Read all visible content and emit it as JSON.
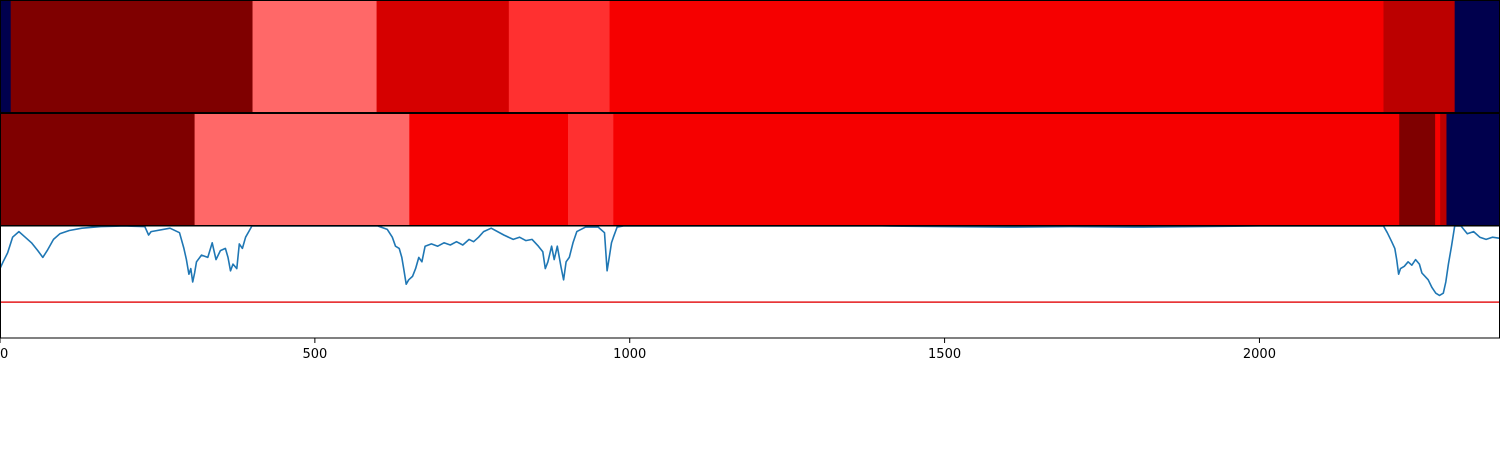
{
  "chart_data": {
    "type": "heatmap",
    "x_range": [
      0,
      2382
    ],
    "x_ticks": [
      0,
      500,
      1000,
      1500,
      2000
    ],
    "x_tick_labels": [
      "0",
      "500",
      "1000",
      "1500",
      "2000"
    ],
    "colors": {
      "navy": "#00004d",
      "maroon": "#7f0000",
      "light_red": "#ff6868",
      "dark_red": "#d60000",
      "mid_red": "#ff3030",
      "bright_red": "#f60000",
      "deep_red": "#bb0000",
      "line": "#1f77b4",
      "threshold": "#e41a1c"
    },
    "tracks": [
      {
        "segments": [
          {
            "start": 0,
            "end": 17,
            "color": "navy"
          },
          {
            "start": 17,
            "end": 401,
            "color": "maroon"
          },
          {
            "start": 401,
            "end": 598,
            "color": "light_red"
          },
          {
            "start": 598,
            "end": 808,
            "color": "dark_red"
          },
          {
            "start": 808,
            "end": 968,
            "color": "mid_red"
          },
          {
            "start": 968,
            "end": 2197,
            "color": "bright_red"
          },
          {
            "start": 2197,
            "end": 2310,
            "color": "deep_red"
          },
          {
            "start": 2310,
            "end": 2382,
            "color": "navy"
          }
        ]
      },
      {
        "segments": [
          {
            "start": 0,
            "end": 309,
            "color": "maroon"
          },
          {
            "start": 309,
            "end": 650,
            "color": "light_red"
          },
          {
            "start": 650,
            "end": 902,
            "color": "bright_red"
          },
          {
            "start": 902,
            "end": 974,
            "color": "mid_red"
          },
          {
            "start": 974,
            "end": 2222,
            "color": "bright_red"
          },
          {
            "start": 2222,
            "end": 2279,
            "color": "maroon"
          },
          {
            "start": 2279,
            "end": 2287,
            "color": "bright_red"
          },
          {
            "start": 2287,
            "end": 2297,
            "color": "deep_red"
          },
          {
            "start": 2297,
            "end": 2382,
            "color": "navy"
          }
        ]
      }
    ],
    "line_panel": {
      "y_range": [
        0,
        1
      ],
      "threshold": 0.32,
      "points": [
        [
          0,
          0.62
        ],
        [
          5,
          0.68
        ],
        [
          12,
          0.76
        ],
        [
          20,
          0.9
        ],
        [
          30,
          0.95
        ],
        [
          40,
          0.9
        ],
        [
          50,
          0.85
        ],
        [
          60,
          0.78
        ],
        [
          68,
          0.72
        ],
        [
          75,
          0.78
        ],
        [
          85,
          0.88
        ],
        [
          95,
          0.93
        ],
        [
          110,
          0.96
        ],
        [
          130,
          0.98
        ],
        [
          160,
          0.995
        ],
        [
          200,
          1.0
        ],
        [
          230,
          0.995
        ],
        [
          236,
          0.92
        ],
        [
          240,
          0.95
        ],
        [
          270,
          0.98
        ],
        [
          285,
          0.94
        ],
        [
          292,
          0.8
        ],
        [
          296,
          0.7
        ],
        [
          300,
          0.57
        ],
        [
          303,
          0.62
        ],
        [
          306,
          0.5
        ],
        [
          309,
          0.58
        ],
        [
          312,
          0.68
        ],
        [
          320,
          0.74
        ],
        [
          330,
          0.72
        ],
        [
          337,
          0.85
        ],
        [
          343,
          0.7
        ],
        [
          350,
          0.78
        ],
        [
          358,
          0.8
        ],
        [
          362,
          0.72
        ],
        [
          366,
          0.6
        ],
        [
          370,
          0.66
        ],
        [
          376,
          0.62
        ],
        [
          380,
          0.84
        ],
        [
          385,
          0.8
        ],
        [
          390,
          0.9
        ],
        [
          396,
          0.96
        ],
        [
          400,
          1.0
        ],
        [
          420,
          1.0
        ],
        [
          500,
          1.0
        ],
        [
          600,
          1.0
        ],
        [
          615,
          0.97
        ],
        [
          623,
          0.9
        ],
        [
          628,
          0.82
        ],
        [
          634,
          0.8
        ],
        [
          638,
          0.72
        ],
        [
          641,
          0.62
        ],
        [
          645,
          0.48
        ],
        [
          649,
          0.52
        ],
        [
          655,
          0.55
        ],
        [
          660,
          0.62
        ],
        [
          665,
          0.72
        ],
        [
          670,
          0.68
        ],
        [
          675,
          0.82
        ],
        [
          685,
          0.84
        ],
        [
          695,
          0.82
        ],
        [
          705,
          0.85
        ],
        [
          715,
          0.83
        ],
        [
          725,
          0.86
        ],
        [
          735,
          0.83
        ],
        [
          745,
          0.88
        ],
        [
          752,
          0.86
        ],
        [
          760,
          0.9
        ],
        [
          768,
          0.95
        ],
        [
          780,
          0.98
        ],
        [
          800,
          0.92
        ],
        [
          815,
          0.88
        ],
        [
          825,
          0.9
        ],
        [
          835,
          0.87
        ],
        [
          845,
          0.88
        ],
        [
          855,
          0.82
        ],
        [
          862,
          0.77
        ],
        [
          866,
          0.62
        ],
        [
          870,
          0.68
        ],
        [
          876,
          0.82
        ],
        [
          880,
          0.7
        ],
        [
          885,
          0.82
        ],
        [
          891,
          0.63
        ],
        [
          895,
          0.52
        ],
        [
          899,
          0.68
        ],
        [
          904,
          0.72
        ],
        [
          910,
          0.85
        ],
        [
          916,
          0.95
        ],
        [
          930,
          0.99
        ],
        [
          950,
          0.99
        ],
        [
          960,
          0.94
        ],
        [
          964,
          0.6
        ],
        [
          967,
          0.7
        ],
        [
          971,
          0.85
        ],
        [
          974,
          0.9
        ],
        [
          980,
          0.99
        ],
        [
          990,
          1.0
        ],
        [
          1100,
          1.0
        ],
        [
          1200,
          1.0
        ],
        [
          1300,
          1.0
        ],
        [
          1400,
          1.0
        ],
        [
          1500,
          0.995
        ],
        [
          1600,
          0.99
        ],
        [
          1700,
          0.995
        ],
        [
          1800,
          0.99
        ],
        [
          1900,
          0.995
        ],
        [
          2000,
          1.0
        ],
        [
          2100,
          1.0
        ],
        [
          2197,
          1.0
        ],
        [
          2203,
          0.94
        ],
        [
          2210,
          0.86
        ],
        [
          2215,
          0.8
        ],
        [
          2218,
          0.7
        ],
        [
          2221,
          0.57
        ],
        [
          2224,
          0.62
        ],
        [
          2230,
          0.64
        ],
        [
          2236,
          0.68
        ],
        [
          2242,
          0.65
        ],
        [
          2248,
          0.7
        ],
        [
          2254,
          0.66
        ],
        [
          2258,
          0.58
        ],
        [
          2263,
          0.55
        ],
        [
          2268,
          0.52
        ],
        [
          2274,
          0.45
        ],
        [
          2280,
          0.4
        ],
        [
          2286,
          0.38
        ],
        [
          2292,
          0.4
        ],
        [
          2296,
          0.5
        ],
        [
          2300,
          0.66
        ],
        [
          2305,
          0.82
        ],
        [
          2310,
          1.0
        ],
        [
          2320,
          1.0
        ],
        [
          2330,
          0.93
        ],
        [
          2340,
          0.95
        ],
        [
          2350,
          0.9
        ],
        [
          2360,
          0.88
        ],
        [
          2370,
          0.9
        ],
        [
          2382,
          0.89
        ]
      ]
    }
  }
}
